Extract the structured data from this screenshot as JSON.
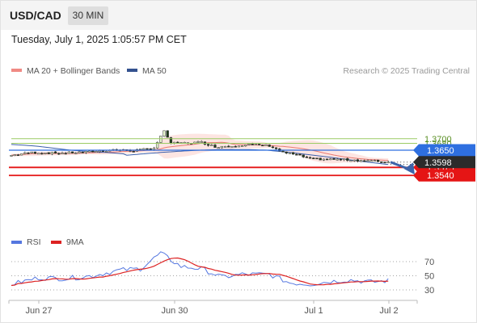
{
  "header": {
    "symbol": "USD/CAD",
    "timeframe": "30 MIN"
  },
  "datetime": "Tuesday, July 1, 2025 1:05:57 PM CET",
  "legend": {
    "ma20": "MA 20 + Bollinger Bands",
    "ma50": "MA 50"
  },
  "credit": "Research © 2025 Trading Central",
  "colors": {
    "bollinger_fill": "#fde0dd",
    "ma20": "#e87a72",
    "ma50": "#3a5eaa",
    "up_candle": "#e7f6ce",
    "down_candle": "#1f3a1a",
    "resistance": "#9ccc65",
    "pivot": "#2e6fe0",
    "support": "#e51515",
    "arrow": "#3c64aa",
    "rsi": "#5577e0",
    "rsi_ma": "#dd2222"
  },
  "levels": [
    {
      "value": "1.3700",
      "price": 1.37,
      "kind": "resistance"
    },
    {
      "value": "1.3680",
      "price": 1.368,
      "kind": "resistance"
    },
    {
      "value": "1.3650",
      "price": 1.365,
      "kind": "pivot"
    },
    {
      "value": "1.3575",
      "price": 1.3575,
      "kind": "support"
    },
    {
      "value": "1.3540",
      "price": 1.354,
      "kind": "support"
    }
  ],
  "current_price": {
    "value": "1.3598",
    "price": 1.3598
  },
  "rsi_panel": {
    "legend_rsi": "RSI",
    "legend_ma": "9MA",
    "levels": [
      "70",
      "50",
      "30"
    ]
  },
  "chart_data": {
    "type": "candlestick",
    "symbol": "USD/CAD",
    "interval": "30 MIN",
    "x_ticks": [
      "Jun 27",
      "Jun 30",
      "Jul 1",
      "Jul 2"
    ],
    "approx_close_path": [
      {
        "bar": 0,
        "close": 1.3628
      },
      {
        "bar": 6,
        "close": 1.364
      },
      {
        "bar": 14,
        "close": 1.3637
      },
      {
        "bar": 22,
        "close": 1.3642
      },
      {
        "bar": 30,
        "close": 1.3652
      },
      {
        "bar": 36,
        "close": 1.3648
      },
      {
        "bar": 42,
        "close": 1.366
      },
      {
        "bar": 45,
        "close": 1.3735
      },
      {
        "bar": 47,
        "close": 1.368
      },
      {
        "bar": 52,
        "close": 1.3682
      },
      {
        "bar": 56,
        "close": 1.3685
      },
      {
        "bar": 60,
        "close": 1.3665
      },
      {
        "bar": 65,
        "close": 1.367
      },
      {
        "bar": 70,
        "close": 1.3675
      },
      {
        "bar": 76,
        "close": 1.367
      },
      {
        "bar": 80,
        "close": 1.364
      },
      {
        "bar": 84,
        "close": 1.363
      },
      {
        "bar": 88,
        "close": 1.3612
      },
      {
        "bar": 94,
        "close": 1.361
      },
      {
        "bar": 100,
        "close": 1.3608
      },
      {
        "bar": 106,
        "close": 1.3603
      },
      {
        "bar": 111,
        "close": 1.3598
      }
    ],
    "ma20_bollinger": "overlaid",
    "ma50": "overlaid",
    "levels": [
      1.37,
      1.368,
      1.365,
      1.3575,
      1.354
    ],
    "current_price": 1.3598,
    "projection": "arrow down toward 1.3540",
    "rsi": {
      "levels": [
        70,
        50,
        30
      ],
      "approx_path": [
        {
          "bar": 0,
          "rsi": 38
        },
        {
          "bar": 8,
          "rsi": 47
        },
        {
          "bar": 16,
          "rsi": 46
        },
        {
          "bar": 24,
          "rsi": 50
        },
        {
          "bar": 32,
          "rsi": 58
        },
        {
          "bar": 38,
          "rsi": 60
        },
        {
          "bar": 44,
          "rsi": 82
        },
        {
          "bar": 50,
          "rsi": 63
        },
        {
          "bar": 56,
          "rsi": 60
        },
        {
          "bar": 62,
          "rsi": 48
        },
        {
          "bar": 68,
          "rsi": 52
        },
        {
          "bar": 76,
          "rsi": 52
        },
        {
          "bar": 82,
          "rsi": 40
        },
        {
          "bar": 88,
          "rsi": 38
        },
        {
          "bar": 94,
          "rsi": 42
        },
        {
          "bar": 100,
          "rsi": 44
        },
        {
          "bar": 106,
          "rsi": 41
        },
        {
          "bar": 111,
          "rsi": 43
        }
      ]
    }
  }
}
